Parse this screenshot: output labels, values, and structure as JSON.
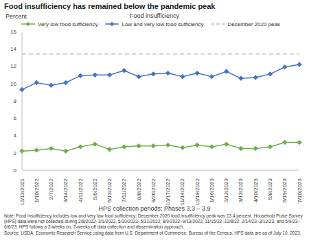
{
  "chart_data": {
    "type": "line",
    "title": "Food insufficiency has remained below the pandemic peak",
    "y_label": "Percent",
    "legend_title": "Food insufficiency",
    "x_label": "HPS collection periods: Phases 3.3 – 3.9",
    "notes": [
      "Note: Food insufficiency includes low and very low food sufficiency; December 2020 food insufficiency peak was 13.4 percent. Household Pulse Survey (HPS) data were not collected during 2/8/2022–3/1/2022, 5/10/2022–5/31/2022, 8/9/2022–9/13/2022, 11/15/22–12/8/22, 2/14/23–3/12/23, and 5/9/23–6/6/23. HPS follows a 2-weeks on, 2-weeks off data collection and dissemination approach.",
      "Source: USDA, Economic Research Service using data from U.S. Department of Commerce, Bureau of the Census, HPS data are as of July 10, 2023."
    ],
    "categories": [
      "12/13/2021",
      "1/10/2022",
      "2/7/2022",
      "3/14/2022",
      "4/11/2022",
      "5/9/2022",
      "6/13/2022",
      "7/11/2022",
      "8/8/2022",
      "9/26/2022",
      "10/17/2022",
      "11/14/2022",
      "12/19/2022",
      "1/16/2023",
      "2/13/2023",
      "3/13/2023",
      "4/10/2023",
      "5/8/2023",
      "6/19/2023",
      "7/10/2023"
    ],
    "series": [
      {
        "name": "Very low food sufficiency",
        "color": "#70ad47",
        "marker": "diamond",
        "line_style": "solid",
        "values": [
          2.2,
          2.3,
          2.5,
          2.2,
          2.7,
          3.0,
          2.4,
          2.7,
          2.8,
          2.8,
          2.9,
          2.6,
          2.9,
          2.7,
          3.0,
          2.5,
          2.5,
          2.7,
          3.2,
          3.2
        ]
      },
      {
        "name": "Low and very low food sufficiency",
        "color": "#4472c4",
        "marker": "diamond",
        "line_style": "solid",
        "values": [
          9.3,
          10.1,
          9.8,
          10.1,
          10.9,
          11.0,
          11.0,
          11.5,
          10.8,
          11.1,
          11.2,
          10.8,
          11.2,
          10.8,
          11.4,
          10.6,
          10.7,
          11.1,
          11.9,
          12.2
        ]
      },
      {
        "name": "December 2020 peak",
        "color": "#bfbfbf",
        "marker": "none",
        "line_style": "dashed",
        "values": [
          13.4,
          13.4,
          13.4,
          13.4,
          13.4,
          13.4,
          13.4,
          13.4,
          13.4,
          13.4,
          13.4,
          13.4,
          13.4,
          13.4,
          13.4,
          13.4,
          13.4,
          13.4,
          13.4,
          13.4
        ]
      }
    ],
    "ylim": [
      0,
      16
    ],
    "yticks": [
      0,
      2,
      4,
      6,
      8,
      10,
      12,
      14,
      16
    ],
    "grid": false,
    "legend": "top"
  }
}
